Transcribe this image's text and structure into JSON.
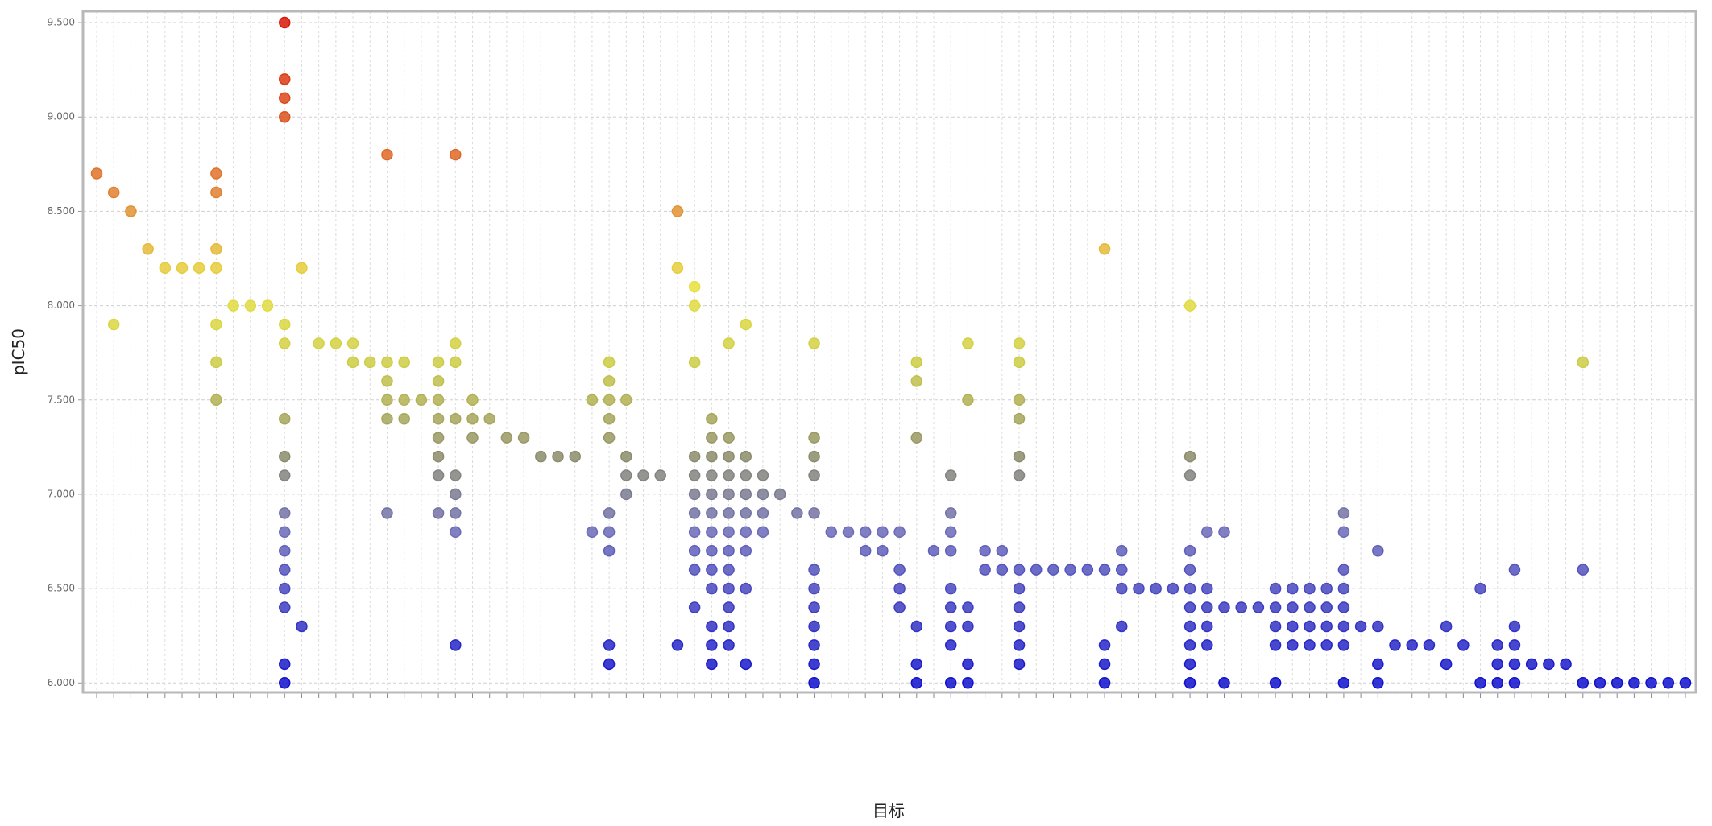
{
  "chart_data": {
    "type": "scatter",
    "x_label": "目标",
    "y_label": "pIC50",
    "categories": [
      null,
      null,
      null,
      null,
      null,
      null,
      null,
      null,
      null,
      null,
      null,
      null,
      null,
      null,
      null,
      null,
      null,
      null,
      null,
      null,
      null,
      null,
      null,
      null,
      null,
      null,
      null,
      null,
      null,
      null,
      null,
      null,
      null,
      null,
      null,
      null,
      null,
      null,
      null,
      null,
      null,
      null,
      null,
      null,
      null,
      null,
      null,
      null,
      null,
      null,
      null,
      null,
      null,
      null,
      null,
      null,
      null,
      null,
      null,
      null,
      null,
      null,
      null,
      null,
      null,
      null,
      null,
      null,
      null,
      null,
      null,
      null,
      null,
      null,
      null,
      null,
      null,
      null,
      null,
      null,
      null,
      null,
      null,
      null,
      null,
      null,
      null,
      null,
      null,
      null,
      null,
      null,
      null,
      null
    ],
    "values": [
      [
        8.7
      ],
      [
        8.6,
        7.9
      ],
      [
        8.5
      ],
      [
        8.3
      ],
      [
        8.2
      ],
      [
        8.2
      ],
      [
        8.2
      ],
      [
        8.7,
        8.6,
        8.3,
        8.2,
        7.9,
        7.7,
        7.5
      ],
      [
        8.0
      ],
      [
        8.0
      ],
      [
        8.0
      ],
      [
        9.5,
        9.2,
        9.1,
        9.0,
        7.9,
        7.8,
        7.4,
        7.2,
        7.1,
        6.9,
        6.8,
        6.7,
        6.6,
        6.5,
        6.4,
        6.1,
        6.0
      ],
      [
        8.2,
        6.3
      ],
      [
        7.8
      ],
      [
        7.8
      ],
      [
        7.8,
        7.7
      ],
      [
        7.7
      ],
      [
        8.8,
        7.7,
        7.6,
        7.5,
        7.4,
        6.9
      ],
      [
        7.7,
        7.5,
        7.4
      ],
      [
        7.5
      ],
      [
        7.7,
        7.6,
        7.5,
        7.4,
        7.3,
        7.2,
        7.1,
        6.9
      ],
      [
        8.8,
        7.8,
        7.7,
        7.4,
        7.1,
        7.0,
        6.9,
        6.8,
        6.2
      ],
      [
        7.5,
        7.4,
        7.3
      ],
      [
        7.4
      ],
      [
        7.3
      ],
      [
        7.3
      ],
      [
        7.2
      ],
      [
        7.2
      ],
      [
        7.2
      ],
      [
        7.5,
        6.8
      ],
      [
        7.7,
        7.6,
        7.5,
        7.4,
        7.3,
        6.9,
        6.8,
        6.7,
        6.2,
        6.1
      ],
      [
        7.5,
        7.2,
        7.1,
        7.0
      ],
      [
        7.1
      ],
      [
        7.1
      ],
      [
        8.5,
        8.2,
        6.2
      ],
      [
        8.1,
        8.0,
        7.7,
        7.2,
        7.1,
        7.0,
        6.9,
        6.8,
        6.7,
        6.6,
        6.4
      ],
      [
        7.4,
        7.3,
        7.2,
        7.1,
        7.0,
        6.9,
        6.8,
        6.7,
        6.6,
        6.5,
        6.3,
        6.2,
        6.1
      ],
      [
        7.8,
        7.3,
        7.2,
        7.1,
        7.0,
        6.9,
        6.8,
        6.7,
        6.6,
        6.5,
        6.4,
        6.3,
        6.2
      ],
      [
        7.9,
        7.2,
        7.1,
        7.0,
        6.9,
        6.8,
        6.7,
        6.5,
        6.1
      ],
      [
        7.1,
        7.0,
        6.9,
        6.8
      ],
      [
        7.0
      ],
      [
        6.9
      ],
      [
        7.8,
        7.3,
        7.2,
        7.1,
        6.9,
        6.6,
        6.5,
        6.4,
        6.3,
        6.2,
        6.1,
        6.0
      ],
      [
        6.8
      ],
      [
        6.8
      ],
      [
        6.8,
        6.7
      ],
      [
        6.8,
        6.7
      ],
      [
        6.8,
        6.6,
        6.5,
        6.4
      ],
      [
        7.7,
        7.6,
        7.3,
        6.3,
        6.1,
        6.0
      ],
      [
        6.7
      ],
      [
        7.1,
        6.9,
        6.8,
        6.7,
        6.5,
        6.4,
        6.3,
        6.2,
        6.0
      ],
      [
        7.8,
        7.5,
        6.4,
        6.3,
        6.1,
        6.0
      ],
      [
        6.7,
        6.6
      ],
      [
        6.7,
        6.6
      ],
      [
        7.8,
        7.7,
        7.5,
        7.4,
        7.2,
        7.1,
        6.6,
        6.5,
        6.4,
        6.3,
        6.2,
        6.1
      ],
      [
        6.6
      ],
      [
        6.6
      ],
      [
        6.6
      ],
      [
        6.6
      ],
      [
        8.3,
        6.6,
        6.2,
        6.1,
        6.0
      ],
      [
        6.7,
        6.6,
        6.5,
        6.3
      ],
      [
        6.5
      ],
      [
        6.5
      ],
      [
        6.5
      ],
      [
        8.0,
        7.2,
        7.1,
        6.7,
        6.6,
        6.5,
        6.4,
        6.3,
        6.2,
        6.1,
        6.0
      ],
      [
        6.8,
        6.5,
        6.4,
        6.3,
        6.2
      ],
      [
        6.8,
        6.4,
        6.0
      ],
      [
        6.4
      ],
      [
        6.4
      ],
      [
        6.5,
        6.4,
        6.3,
        6.2,
        6.0
      ],
      [
        6.5,
        6.4,
        6.3,
        6.2
      ],
      [
        6.5,
        6.4,
        6.3,
        6.2
      ],
      [
        6.5,
        6.4,
        6.3,
        6.2
      ],
      [
        6.9,
        6.8,
        6.6,
        6.5,
        6.4,
        6.3,
        6.2,
        6.0
      ],
      [
        6.3
      ],
      [
        6.7,
        6.3,
        6.1,
        6.0
      ],
      [
        6.2
      ],
      [
        6.2
      ],
      [
        6.2
      ],
      [
        6.3,
        6.1
      ],
      [
        6.2
      ],
      [
        6.5,
        6.0
      ],
      [
        6.2,
        6.1,
        6.0
      ],
      [
        6.6,
        6.3,
        6.2,
        6.1,
        6.0
      ],
      [
        6.1
      ],
      [
        6.1
      ],
      [
        6.1
      ],
      [
        7.7,
        6.6,
        6.0
      ],
      [
        6.0
      ],
      [
        6.0
      ],
      [
        6.0
      ],
      [
        6.0
      ],
      [
        6.0
      ],
      [
        6.0
      ]
    ],
    "ylim": [
      5.95,
      9.56
    ],
    "yticks": [
      {
        "value": 6,
        "label": "6.000"
      },
      {
        "value": 6.5,
        "label": "6.500"
      },
      {
        "value": 7,
        "label": "7.000"
      },
      {
        "value": 7.5,
        "label": "7.500"
      },
      {
        "value": 8,
        "label": "8.000"
      },
      {
        "value": 8.5,
        "label": "8.500"
      },
      {
        "value": 9,
        "label": "9.000"
      },
      {
        "value": 9.5,
        "label": "9.500"
      }
    ],
    "grid": true,
    "color_scale": [
      {
        "value": 6.0,
        "color": "#1010cc"
      },
      {
        "value": 6.8,
        "color": "#6a6ab8"
      },
      {
        "value": 7.2,
        "color": "#8c8c6c"
      },
      {
        "value": 7.7,
        "color": "#cccc44"
      },
      {
        "value": 8.1,
        "color": "#e8e040"
      },
      {
        "value": 8.6,
        "color": "#e08030"
      },
      {
        "value": 9.5,
        "color": "#d81808"
      }
    ]
  }
}
